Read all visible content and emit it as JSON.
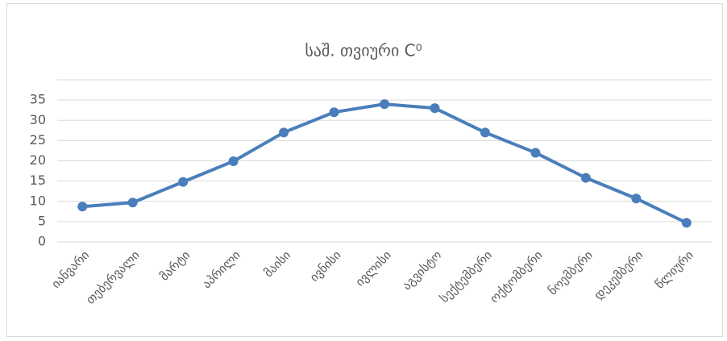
{
  "chart_data": {
    "type": "line",
    "title": "საშ. თვიური C⁰",
    "categories": [
      "იანვარი",
      "თებერვალი",
      "მარტი",
      "აპრილი",
      "მაისი",
      "ივნისი",
      "ივლისი",
      "აგვისტო",
      "სექტემბერი",
      "ოქტომბერი",
      "ნოემბერი",
      "დეკემბერი",
      "წლიური"
    ],
    "series": [
      {
        "name": "საშ. თვიური C⁰",
        "color": "#4a7ebb",
        "values": [
          8.7,
          9.7,
          14.8,
          19.9,
          27,
          32,
          34,
          33,
          27,
          22,
          15.8,
          10.7,
          4.7
        ]
      }
    ],
    "ylim": [
      0,
      40
    ],
    "yticks": [
      0,
      5,
      10,
      15,
      20,
      25,
      30,
      35
    ],
    "grid": true
  }
}
